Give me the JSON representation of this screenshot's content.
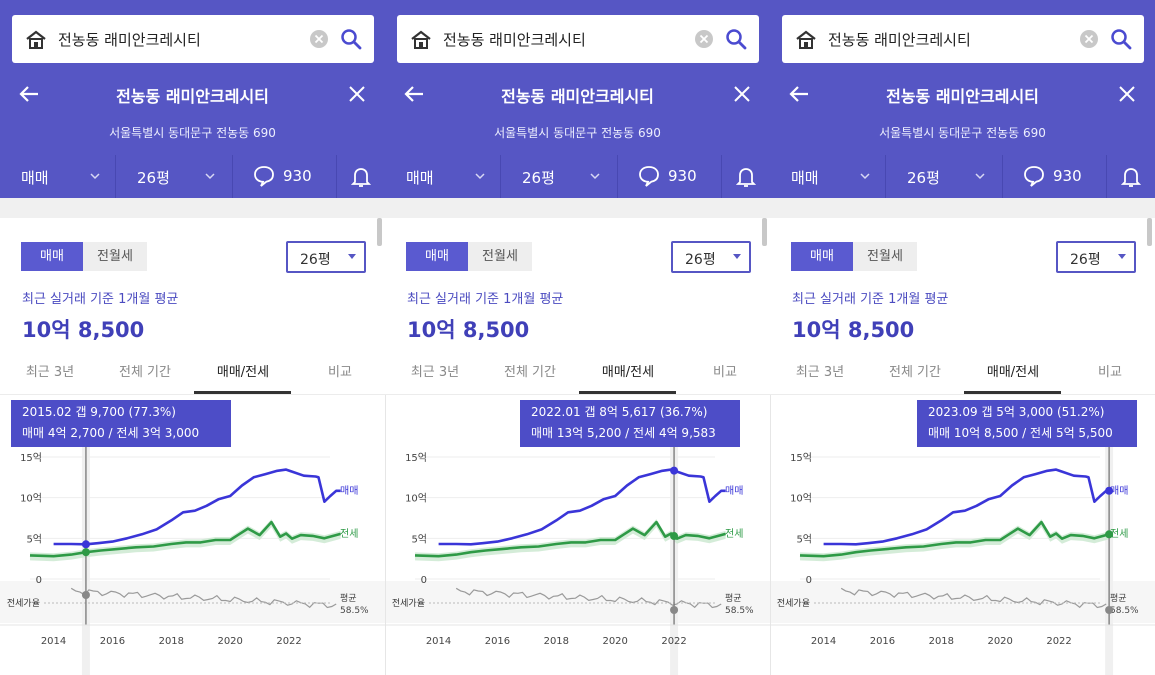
{
  "colors": {
    "header_bg": "#5656c4",
    "accent": "#4b4bd0",
    "sale_line": "#3a35d8",
    "jeonse_line": "#2e9a46",
    "ratio_line": "#9a9a9a",
    "tooltip_bg": "#4d4dc7"
  },
  "search": {
    "query": "전농동 래미안크레시티",
    "icons": [
      "home-icon",
      "clear-icon",
      "search-icon"
    ]
  },
  "header": {
    "title": "전농동 래미안크레시티",
    "address": "서울특별시 동대문구 전농동 690",
    "icons": [
      "back-arrow-icon",
      "close-icon"
    ]
  },
  "filters": {
    "trade_type": "매매",
    "size": "26평",
    "comment_count": "930",
    "icons": [
      "chevron-down-icon",
      "comment-icon",
      "bell-icon"
    ]
  },
  "toggle": {
    "sale": "매매",
    "rent": "전월세"
  },
  "size_select": "26평",
  "summary": {
    "label": "최근 실거래 기준 1개월 평균",
    "value": "10억 8,500"
  },
  "period_tabs": [
    "최근 3년",
    "전체 기간",
    "매매/전세",
    "비교"
  ],
  "active_tab": "매매/전세",
  "chart_data": {
    "type": "line",
    "y_ticks": [
      "15억",
      "10억",
      "5억",
      "0"
    ],
    "y_unit": "억",
    "ylim": [
      0,
      15
    ],
    "x_ticks": [
      "2014",
      "2016",
      "2018",
      "2020",
      "2022"
    ],
    "series": [
      {
        "name": "매매",
        "color": "#3a35d8",
        "x": [
          2014.0,
          2014.6,
          2015.1,
          2015.5,
          2016.0,
          2016.5,
          2017.0,
          2017.5,
          2018.0,
          2018.4,
          2018.8,
          2019.2,
          2019.6,
          2020.0,
          2020.4,
          2020.8,
          2021.2,
          2021.6,
          2021.9,
          2022.1,
          2022.5,
          2022.9,
          2023.0,
          2023.2,
          2023.4,
          2023.6,
          2023.75
        ],
        "values": [
          4.3,
          4.3,
          4.27,
          4.4,
          4.6,
          5.0,
          5.5,
          6.1,
          7.2,
          8.2,
          8.4,
          9.0,
          9.8,
          10.2,
          11.5,
          12.5,
          12.9,
          13.3,
          13.45,
          13.2,
          12.7,
          12.6,
          12.5,
          9.5,
          10.2,
          10.85,
          10.85
        ]
      },
      {
        "name": "전세",
        "color": "#2e9a46",
        "x": [
          2013.2,
          2014.0,
          2014.6,
          2015.1,
          2015.6,
          2016.2,
          2016.8,
          2017.4,
          2018.0,
          2018.5,
          2019.0,
          2019.5,
          2020.0,
          2020.3,
          2020.6,
          2021.0,
          2021.4,
          2021.7,
          2021.9,
          2022.1,
          2022.4,
          2022.8,
          2023.2,
          2023.5,
          2023.75
        ],
        "values": [
          2.9,
          2.8,
          3.0,
          3.3,
          3.5,
          3.7,
          3.9,
          4.0,
          4.3,
          4.5,
          4.5,
          4.8,
          4.8,
          5.5,
          6.2,
          5.4,
          7.0,
          5.2,
          5.6,
          4.96,
          5.4,
          5.3,
          5.0,
          5.3,
          5.55
        ]
      }
    ],
    "ratio": {
      "label": "전세가율",
      "avg_label": "평균",
      "avg_value": "58.5%"
    },
    "end_labels": [
      "매매",
      "전세"
    ]
  },
  "panels": [
    {
      "tooltip_line1": "2015.02  갭 9,700 (77.3%)",
      "tooltip_line2": "매매 4억 2,700 / 전세 3억 3,000",
      "cursor_year": 2015.1
    },
    {
      "tooltip_line1": "2022.01  갭 8억 5,617 (36.7%)",
      "tooltip_line2": "매매 13억 5,200 / 전세 4억 9,583",
      "cursor_year": 2022.0
    },
    {
      "tooltip_line1": "2023.09  갭 5억 3,000 (51.2%)",
      "tooltip_line2": "매매 10억 8,500 / 전세 5억 5,500",
      "cursor_year": 2023.7
    }
  ]
}
